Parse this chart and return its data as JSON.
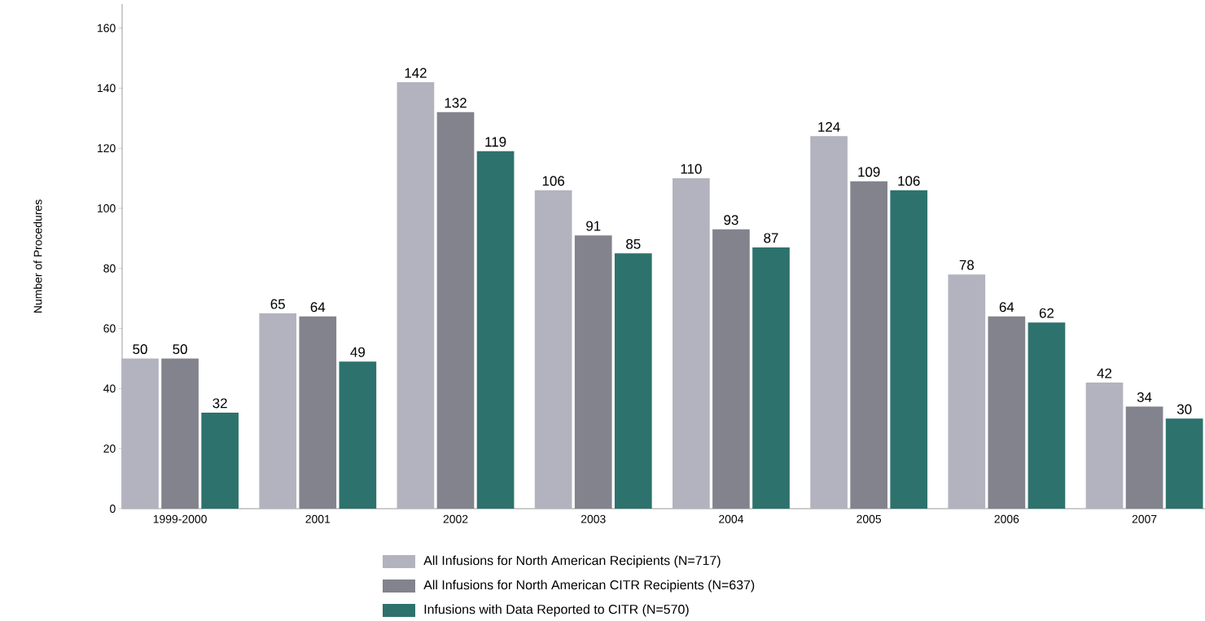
{
  "chart_data": {
    "type": "bar",
    "ylabel": "Number of Procedures",
    "categories": [
      "1999-2000",
      "2001",
      "2002",
      "2003",
      "2004",
      "2005",
      "2006",
      "2007"
    ],
    "series": [
      {
        "name": "All Infusions for North American Recipients (N=717)",
        "color": "#b3b3bf",
        "values": [
          50,
          65,
          142,
          106,
          110,
          124,
          78,
          42
        ]
      },
      {
        "name": "All Infusions for North American CITR Recipients (N=637)",
        "color": "#83838d",
        "values": [
          50,
          64,
          132,
          91,
          93,
          109,
          64,
          34
        ]
      },
      {
        "name": "Infusions with Data Reported to CITR (N=570)",
        "color": "#2e726d",
        "values": [
          32,
          49,
          119,
          85,
          87,
          106,
          62,
          30
        ]
      }
    ],
    "ylim": [
      0,
      168
    ],
    "yticks": [
      0,
      20,
      40,
      60,
      80,
      100,
      120,
      140,
      160
    ],
    "data_labels": true,
    "legend": "bottom",
    "grid": false
  }
}
